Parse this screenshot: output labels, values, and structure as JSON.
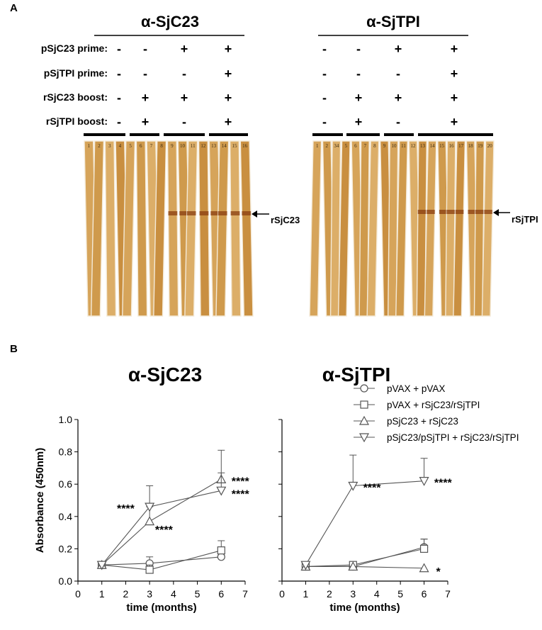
{
  "panel_a": {
    "label": "A",
    "row_labels": [
      "pSjC23 prime:",
      "pSjTPI  prime:",
      "rSjC23 boost:",
      "rSjTPI boost:"
    ],
    "blots": [
      {
        "title": "α-SjC23",
        "rows": [
          [
            "-",
            "-",
            "+",
            "+"
          ],
          [
            "-",
            "-",
            "-",
            "+"
          ],
          [
            "-",
            "+",
            "+",
            "+"
          ],
          [
            "-",
            "+",
            "-",
            "+"
          ]
        ],
        "lanes": [
          "1",
          "2",
          "3",
          "4",
          "5",
          "6",
          "7",
          "8",
          "9",
          "10",
          "11",
          "12",
          "13",
          "14",
          "15",
          "16"
        ],
        "band_label": "rSjC23"
      },
      {
        "title": "α-SjTPI",
        "rows": [
          [
            "-",
            "-",
            "+",
            "+"
          ],
          [
            "-",
            "-",
            "-",
            "+"
          ],
          [
            "-",
            "+",
            "+",
            "+"
          ],
          [
            "-",
            "+",
            "-",
            "+"
          ]
        ],
        "lanes": [
          "1",
          "2",
          "34",
          "5",
          "6",
          "7",
          "8",
          "9",
          "10",
          "11",
          "12",
          "13",
          "14",
          "15",
          "16",
          "17",
          "18",
          "19",
          "20"
        ],
        "band_label": "rSjTPI"
      }
    ]
  },
  "panel_b": {
    "label": "B",
    "legend": [
      {
        "label": "pVAX + pVAX",
        "marker": "circle"
      },
      {
        "label": "pVAX + rSjC23/rSjTPI",
        "marker": "square"
      },
      {
        "label": "pSjC23 + rSjC23",
        "marker": "triangle-up"
      },
      {
        "label": "pSjC23/pSjTPI + rSjC23/rSjTPI",
        "marker": "triangle-down"
      }
    ]
  },
  "chart_data": [
    {
      "type": "line",
      "title": "α-SjC23",
      "xlabel": "time (months)",
      "ylabel": "Absorbance (450nm)",
      "xlim": [
        0,
        7
      ],
      "ylim": [
        0,
        1.0
      ],
      "xticks": [
        "0",
        "1",
        "2",
        "3",
        "4",
        "5",
        "6",
        "7"
      ],
      "yticks": [
        "0.0",
        "0.2",
        "0.4",
        "0.6",
        "0.8",
        "1.0"
      ],
      "x": [
        1,
        3,
        6
      ],
      "series": [
        {
          "marker": "circle",
          "values": [
            0.1,
            0.11,
            0.15
          ],
          "err": [
            0.02,
            0.04,
            0.02
          ]
        },
        {
          "marker": "square",
          "values": [
            0.1,
            0.07,
            0.19
          ],
          "err": [
            0.02,
            0.03,
            0.06
          ]
        },
        {
          "marker": "triangle-up",
          "values": [
            0.1,
            0.37,
            0.63
          ],
          "err": [
            0.02,
            0.09,
            0.18
          ]
        },
        {
          "marker": "triangle-down",
          "values": [
            0.1,
            0.46,
            0.56
          ],
          "err": [
            0.02,
            0.13,
            0.11
          ]
        }
      ],
      "annotations": [
        {
          "text": "****",
          "x": 2.0,
          "y": 0.46
        },
        {
          "text": "****",
          "x": 3.6,
          "y": 0.33
        },
        {
          "text": "****",
          "x": 6.8,
          "y": 0.63
        },
        {
          "text": "****",
          "x": 6.8,
          "y": 0.55
        }
      ]
    },
    {
      "type": "line",
      "title": "α-SjTPI",
      "xlabel": "time (months)",
      "ylabel": "",
      "xlim": [
        0,
        7
      ],
      "ylim": [
        0,
        1.0
      ],
      "xticks": [
        "0",
        "1",
        "2",
        "3",
        "4",
        "5",
        "6",
        "7"
      ],
      "yticks": [],
      "x": [
        1,
        3,
        6
      ],
      "series": [
        {
          "marker": "circle",
          "values": [
            0.09,
            0.09,
            0.21
          ],
          "err": [
            0.02,
            0.02,
            0.05
          ]
        },
        {
          "marker": "square",
          "values": [
            0.09,
            0.1,
            0.2
          ],
          "err": [
            0.02,
            0.02,
            0.06
          ]
        },
        {
          "marker": "triangle-up",
          "values": [
            0.09,
            0.09,
            0.08
          ],
          "err": [
            0.02,
            0.02,
            0.01
          ]
        },
        {
          "marker": "triangle-down",
          "values": [
            0.1,
            0.59,
            0.62
          ],
          "err": [
            0.02,
            0.19,
            0.14
          ]
        }
      ],
      "annotations": [
        {
          "text": "****",
          "x": 3.8,
          "y": 0.59
        },
        {
          "text": "****",
          "x": 6.8,
          "y": 0.62
        },
        {
          "text": "*",
          "x": 6.6,
          "y": 0.07
        }
      ]
    }
  ]
}
